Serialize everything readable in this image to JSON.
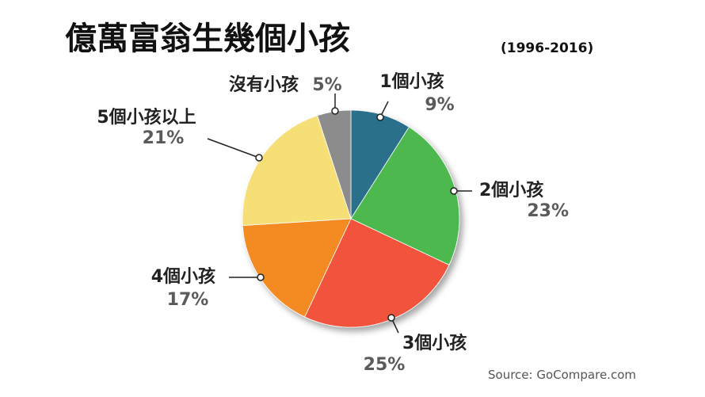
{
  "chart_data": {
    "type": "pie",
    "title": "億萬富翁生幾個小孩",
    "subtitle": "(1996-2016)",
    "categories": [
      "1個小孩",
      "2個小孩",
      "3個小孩",
      "4個小孩",
      "5個小孩以上",
      "沒有小孩"
    ],
    "values": [
      9,
      23,
      25,
      17,
      21,
      5
    ],
    "value_labels": [
      "9%",
      "23%",
      "25%",
      "17%",
      "21%",
      "5%"
    ],
    "colors": [
      "#2a6f8a",
      "#4db84e",
      "#f2533c",
      "#f48a24",
      "#f7df78",
      "#8c8c8c"
    ],
    "start": "12 o'clock, clockwise",
    "legend": "none (callout labels)",
    "source": "Source: GoCompare.com"
  }
}
